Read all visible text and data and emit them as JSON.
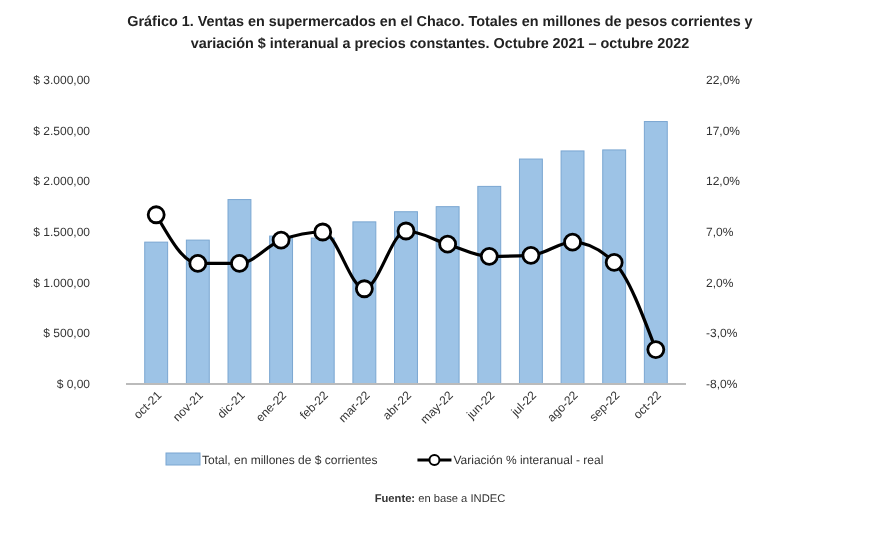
{
  "chart_data": {
    "type": "bar",
    "title": "Gráfico 1. Ventas en supermercados en el Chaco. Totales en millones de pesos corrientes y variación $ interanual a precios constantes. Octubre 2021 – octubre 2022",
    "categories": [
      "oct-21",
      "nov-21",
      "dic-21",
      "ene-22",
      "feb-22",
      "mar-22",
      "abr-22",
      "may-22",
      "jun-22",
      "jul-22",
      "ago-22",
      "sep-22",
      "oct-22"
    ],
    "series": [
      {
        "name": "Total, en millones de $ corrientes",
        "color": "#9dc3e6",
        "values": [
          1400,
          1420,
          1820,
          1460,
          1440,
          1600,
          1700,
          1750,
          1950,
          2220,
          2300,
          2310,
          2590
        ]
      },
      {
        "name": "Variación % interanual - real",
        "type": "line",
        "axis": "y2",
        "color": "#000000",
        "marker": "circle",
        "values": [
          8.7,
          3.9,
          3.9,
          6.2,
          7.0,
          1.4,
          7.1,
          5.8,
          4.6,
          4.7,
          6.0,
          4.0,
          -4.6
        ]
      }
    ],
    "ylim": [
      0,
      3000
    ],
    "yticks": [
      {
        "value": 0,
        "label": "$ 0,00"
      },
      {
        "value": 500,
        "label": "$ 500,00"
      },
      {
        "value": 1000,
        "label": "$ 1.000,00"
      },
      {
        "value": 1500,
        "label": "$ 1.500,00"
      },
      {
        "value": 2000,
        "label": "$ 2.000,00"
      },
      {
        "value": 2500,
        "label": "$ 2.500,00"
      },
      {
        "value": 3000,
        "label": "$ 3.000,00"
      }
    ],
    "y2lim": [
      -8,
      22
    ],
    "y2ticks": [
      {
        "value": -8,
        "label": "-8,0%"
      },
      {
        "value": -3,
        "label": "-3,0%"
      },
      {
        "value": 2,
        "label": "2,0%"
      },
      {
        "value": 7,
        "label": "7,0%"
      },
      {
        "value": 12,
        "label": "12,0%"
      },
      {
        "value": 17,
        "label": "17,0%"
      },
      {
        "value": 22,
        "label": "22,0%"
      }
    ],
    "legend": "bottom",
    "grid": false,
    "annotations": [
      "Fuente: en base a INDEC"
    ]
  }
}
